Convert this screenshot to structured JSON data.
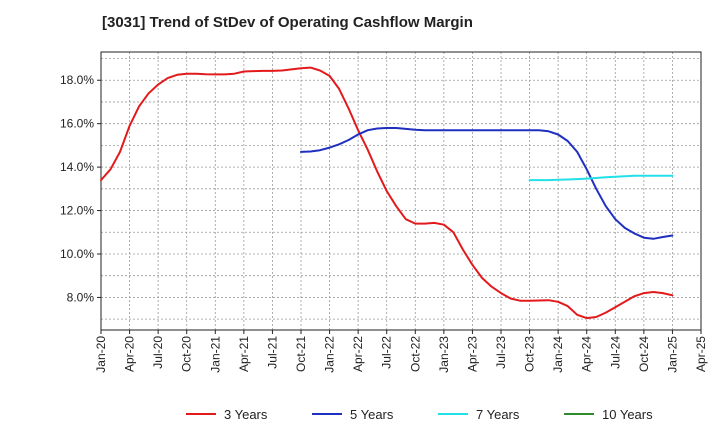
{
  "chart_data": {
    "type": "line",
    "title": "[3031]  Trend of StDev of Operating Cashflow Margin",
    "xlabel": "",
    "ylabel": "",
    "ylim": [
      6.5,
      19.3
    ],
    "yticks": [
      8.0,
      10.0,
      12.0,
      14.0,
      16.0,
      18.0
    ],
    "ytick_labels": [
      "8.0%",
      "10.0%",
      "12.0%",
      "14.0%",
      "16.0%",
      "18.0%"
    ],
    "xlim": [
      "Jan-20",
      "Apr-25"
    ],
    "xtick_labels": [
      "Jan-20",
      "Apr-20",
      "Jul-20",
      "Oct-20",
      "Jan-21",
      "Apr-21",
      "Jul-21",
      "Oct-21",
      "Jan-22",
      "Apr-22",
      "Jul-22",
      "Oct-22",
      "Jan-23",
      "Apr-23",
      "Jul-23",
      "Oct-23",
      "Jan-24",
      "Apr-24",
      "Jul-24",
      "Oct-24",
      "Jan-25",
      "Apr-25"
    ],
    "grid": true,
    "legend_position": "bottom",
    "series": [
      {
        "name": "3 Years",
        "color": "#e31a1c",
        "x": [
          "Jan-20",
          "Feb-20",
          "Mar-20",
          "Apr-20",
          "May-20",
          "Jun-20",
          "Jul-20",
          "Aug-20",
          "Sep-20",
          "Oct-20",
          "Nov-20",
          "Dec-20",
          "Jan-21",
          "Feb-21",
          "Mar-21",
          "Apr-21",
          "May-21",
          "Jun-21",
          "Jul-21",
          "Aug-21",
          "Sep-21",
          "Oct-21",
          "Nov-21",
          "Dec-21",
          "Jan-22",
          "Feb-22",
          "Mar-22",
          "Apr-22",
          "May-22",
          "Jun-22",
          "Jul-22",
          "Aug-22",
          "Sep-22",
          "Oct-22",
          "Nov-22",
          "Dec-22",
          "Jan-23",
          "Feb-23",
          "Mar-23",
          "Apr-23",
          "May-23",
          "Jun-23",
          "Jul-23",
          "Aug-23",
          "Sep-23",
          "Oct-23",
          "Nov-23",
          "Dec-23",
          "Jan-24",
          "Feb-24",
          "Mar-24",
          "Apr-24",
          "May-24",
          "Jun-24",
          "Jul-24",
          "Aug-24",
          "Sep-24",
          "Oct-24",
          "Nov-24",
          "Dec-24",
          "Jan-25"
        ],
        "values": [
          13.4,
          13.9,
          14.7,
          15.9,
          16.8,
          17.4,
          17.8,
          18.1,
          18.25,
          18.3,
          18.3,
          18.28,
          18.27,
          18.27,
          18.3,
          18.4,
          18.42,
          18.43,
          18.43,
          18.45,
          18.5,
          18.55,
          18.58,
          18.45,
          18.2,
          17.6,
          16.7,
          15.7,
          14.8,
          13.8,
          12.9,
          12.2,
          11.6,
          11.4,
          11.4,
          11.43,
          11.35,
          11.0,
          10.2,
          9.5,
          8.9,
          8.5,
          8.2,
          7.95,
          7.85,
          7.85,
          7.86,
          7.87,
          7.8,
          7.6,
          7.2,
          7.05,
          7.1,
          7.3,
          7.55,
          7.8,
          8.05,
          8.2,
          8.25,
          8.2,
          8.1
        ]
      },
      {
        "name": "5 Years",
        "color": "#1f2fbf",
        "x": [
          "Oct-21",
          "Nov-21",
          "Dec-21",
          "Jan-22",
          "Feb-22",
          "Mar-22",
          "Apr-22",
          "May-22",
          "Jun-22",
          "Jul-22",
          "Aug-22",
          "Sep-22",
          "Oct-22",
          "Nov-22",
          "Dec-22",
          "Jan-23",
          "Feb-23",
          "Mar-23",
          "Apr-23",
          "May-23",
          "Jun-23",
          "Jul-23",
          "Aug-23",
          "Sep-23",
          "Oct-23",
          "Nov-23",
          "Dec-23",
          "Jan-24",
          "Feb-24",
          "Mar-24",
          "Apr-24",
          "May-24",
          "Jun-24",
          "Jul-24",
          "Aug-24",
          "Sep-24",
          "Oct-24",
          "Nov-24",
          "Dec-24",
          "Jan-25"
        ],
        "values": [
          14.7,
          14.72,
          14.78,
          14.9,
          15.05,
          15.25,
          15.5,
          15.7,
          15.78,
          15.8,
          15.8,
          15.76,
          15.72,
          15.7,
          15.7,
          15.7,
          15.7,
          15.7,
          15.7,
          15.7,
          15.7,
          15.7,
          15.7,
          15.7,
          15.7,
          15.7,
          15.65,
          15.5,
          15.2,
          14.7,
          13.9,
          13.0,
          12.2,
          11.6,
          11.2,
          10.95,
          10.75,
          10.7,
          10.78,
          10.85
        ]
      },
      {
        "name": "7 Years",
        "color": "#22e0e8",
        "x": [
          "Oct-23",
          "Nov-23",
          "Dec-23",
          "Jan-24",
          "Feb-24",
          "Mar-24",
          "Apr-24",
          "May-24",
          "Jun-24",
          "Jul-24",
          "Aug-24",
          "Sep-24",
          "Oct-24",
          "Nov-24",
          "Dec-24",
          "Jan-25"
        ],
        "values": [
          13.4,
          13.4,
          13.4,
          13.42,
          13.43,
          13.45,
          13.47,
          13.5,
          13.53,
          13.56,
          13.58,
          13.6,
          13.6,
          13.6,
          13.6,
          13.6
        ]
      },
      {
        "name": "10 Years",
        "color": "#2e8b2e",
        "x": [],
        "values": []
      }
    ]
  }
}
